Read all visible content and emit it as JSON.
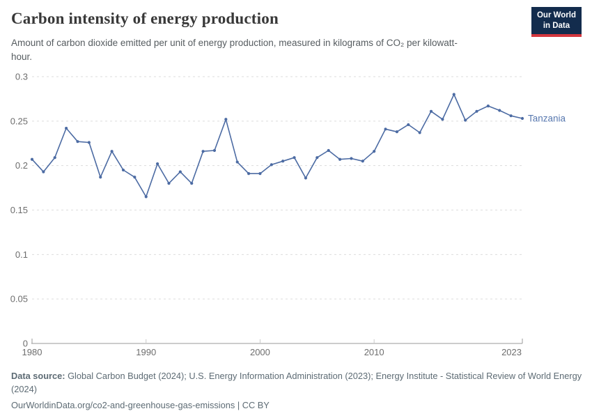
{
  "header": {
    "title": "Carbon intensity of energy production",
    "subtitle": "Amount of carbon dioxide emitted per unit of energy production, measured in kilograms of CO₂ per kilowatt-hour.",
    "logo": {
      "line1": "Our World",
      "line2": "in Data",
      "bg": "#132c4d",
      "stripe": "#d4373e"
    }
  },
  "chart_data": {
    "type": "line",
    "title": "Carbon intensity of energy production",
    "xlabel": "",
    "ylabel": "kilograms of CO₂ per kilowatt-hour",
    "xlim": [
      1980,
      2023
    ],
    "ylim": [
      0,
      0.3
    ],
    "x_ticks": [
      1980,
      1990,
      2000,
      2010,
      2023
    ],
    "y_ticks": [
      0,
      0.05,
      0.1,
      0.15,
      0.2,
      0.25,
      0.3
    ],
    "grid": "horizontal-dashed",
    "legend_position": "end-of-line",
    "end_label": "Tanzania",
    "series": [
      {
        "name": "Tanzania",
        "color": "#4c6ba3",
        "x": [
          1980,
          1981,
          1982,
          1983,
          1984,
          1985,
          1986,
          1987,
          1988,
          1989,
          1990,
          1991,
          1992,
          1993,
          1994,
          1995,
          1996,
          1997,
          1998,
          1999,
          2000,
          2001,
          2002,
          2003,
          2004,
          2005,
          2006,
          2007,
          2008,
          2009,
          2010,
          2011,
          2012,
          2013,
          2014,
          2015,
          2016,
          2017,
          2018,
          2019,
          2020,
          2021,
          2022,
          2023
        ],
        "values": [
          0.207,
          0.193,
          0.209,
          0.242,
          0.227,
          0.226,
          0.187,
          0.216,
          0.195,
          0.187,
          0.165,
          0.202,
          0.18,
          0.193,
          0.18,
          0.216,
          0.217,
          0.252,
          0.204,
          0.191,
          0.191,
          0.201,
          0.205,
          0.209,
          0.186,
          0.209,
          0.217,
          0.207,
          0.208,
          0.205,
          0.216,
          0.241,
          0.238,
          0.246,
          0.237,
          0.261,
          0.252,
          0.28,
          0.251,
          0.261,
          0.267,
          0.262,
          0.256,
          0.253
        ]
      }
    ],
    "axis_color": "#999999",
    "grid_color": "#dcdcdc",
    "tick_label_color": "#6d6d6d"
  },
  "footer": {
    "source_label": "Data source:",
    "source_text": " Global Carbon Budget (2024); U.S. Energy Information Administration (2023); Energy Institute - Statistical Review of World Energy (2024)",
    "link_text": "OurWorldinData.org/co2-and-greenhouse-gas-emissions | CC BY"
  }
}
